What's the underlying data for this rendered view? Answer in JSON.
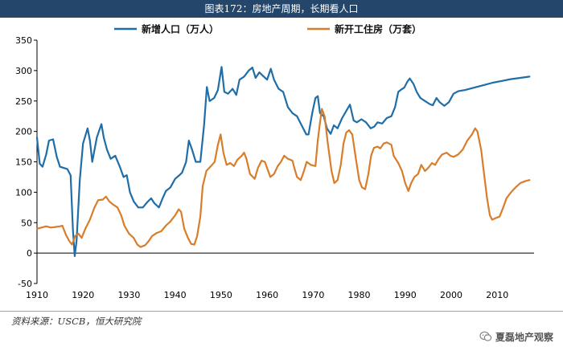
{
  "header": {
    "title": "图表172：房地产周期，长期看人口"
  },
  "source": {
    "text": "资料来源：USCB，恒大研究院"
  },
  "watermark": {
    "text": "夏磊地产观察",
    "icon": "wechat-icon"
  },
  "chart_data": {
    "type": "line",
    "title": "",
    "xlabel": "",
    "ylabel": "",
    "xlim": [
      1910,
      2018
    ],
    "ylim": [
      -50,
      350
    ],
    "x_ticks": [
      1910,
      1920,
      1930,
      1940,
      1950,
      1960,
      1970,
      1980,
      1990,
      2000,
      2010
    ],
    "y_ticks": [
      -50,
      0,
      50,
      100,
      150,
      200,
      250,
      300,
      350
    ],
    "legend_position": "top-center",
    "grid": false,
    "series": [
      {
        "name": "新增人口（万人）",
        "color": "#1f6ea8",
        "points": [
          [
            1910,
            190
          ],
          [
            1910.6,
            147
          ],
          [
            1911.2,
            142
          ],
          [
            1912.0,
            162
          ],
          [
            1912.6,
            185
          ],
          [
            1913.5,
            187
          ],
          [
            1914.3,
            158
          ],
          [
            1915.0,
            142
          ],
          [
            1915.8,
            140
          ],
          [
            1916.6,
            138
          ],
          [
            1917.3,
            128
          ],
          [
            1917.8,
            40
          ],
          [
            1918.2,
            -5
          ],
          [
            1918.6,
            20
          ],
          [
            1919.3,
            120
          ],
          [
            1920.0,
            180
          ],
          [
            1921.0,
            205
          ],
          [
            1921.5,
            185
          ],
          [
            1922.0,
            150
          ],
          [
            1923.0,
            190
          ],
          [
            1924.0,
            212
          ],
          [
            1924.5,
            190
          ],
          [
            1925.2,
            170
          ],
          [
            1926.0,
            155
          ],
          [
            1927.0,
            160
          ],
          [
            1928.0,
            142
          ],
          [
            1928.8,
            125
          ],
          [
            1929.5,
            128
          ],
          [
            1930.2,
            100
          ],
          [
            1931.0,
            85
          ],
          [
            1932.0,
            75
          ],
          [
            1933.0,
            75
          ],
          [
            1934.0,
            84
          ],
          [
            1934.8,
            90
          ],
          [
            1935.5,
            82
          ],
          [
            1936.5,
            75
          ],
          [
            1937.3,
            90
          ],
          [
            1938.0,
            102
          ],
          [
            1939.0,
            108
          ],
          [
            1940.0,
            122
          ],
          [
            1940.8,
            127
          ],
          [
            1941.5,
            132
          ],
          [
            1942.4,
            150
          ],
          [
            1943.0,
            185
          ],
          [
            1943.7,
            170
          ],
          [
            1944.5,
            150
          ],
          [
            1945.5,
            150
          ],
          [
            1946.3,
            210
          ],
          [
            1946.9,
            273
          ],
          [
            1947.5,
            250
          ],
          [
            1948.5,
            255
          ],
          [
            1949.3,
            268
          ],
          [
            1950.1,
            306
          ],
          [
            1950.7,
            265
          ],
          [
            1951.5,
            262
          ],
          [
            1952.5,
            270
          ],
          [
            1953.3,
            260
          ],
          [
            1954.0,
            285
          ],
          [
            1955.0,
            290
          ],
          [
            1956.0,
            300
          ],
          [
            1956.8,
            305
          ],
          [
            1957.5,
            288
          ],
          [
            1958.3,
            297
          ],
          [
            1959.0,
            292
          ],
          [
            1960.0,
            285
          ],
          [
            1960.8,
            303
          ],
          [
            1961.5,
            285
          ],
          [
            1962.5,
            270
          ],
          [
            1963.5,
            265
          ],
          [
            1964.5,
            240
          ],
          [
            1965.5,
            230
          ],
          [
            1966.5,
            225
          ],
          [
            1967.5,
            210
          ],
          [
            1968.5,
            195
          ],
          [
            1969.0,
            195
          ],
          [
            1969.8,
            230
          ],
          [
            1970.5,
            255
          ],
          [
            1971.0,
            258
          ],
          [
            1971.5,
            230
          ],
          [
            1972.3,
            225
          ],
          [
            1973.0,
            205
          ],
          [
            1973.8,
            196
          ],
          [
            1974.5,
            210
          ],
          [
            1975.3,
            205
          ],
          [
            1976.3,
            222
          ],
          [
            1977.3,
            235
          ],
          [
            1978.0,
            244
          ],
          [
            1978.8,
            218
          ],
          [
            1979.5,
            215
          ],
          [
            1980.5,
            220
          ],
          [
            1981.5,
            215
          ],
          [
            1982.5,
            205
          ],
          [
            1983.3,
            208
          ],
          [
            1984.0,
            215
          ],
          [
            1985.0,
            213
          ],
          [
            1986.0,
            222
          ],
          [
            1987.0,
            225
          ],
          [
            1987.8,
            240
          ],
          [
            1988.5,
            265
          ],
          [
            1989.0,
            268
          ],
          [
            1989.8,
            272
          ],
          [
            1990.5,
            282
          ],
          [
            1991.0,
            287
          ],
          [
            1991.8,
            278
          ],
          [
            1992.5,
            265
          ],
          [
            1993.3,
            255
          ],
          [
            1994.3,
            250
          ],
          [
            1995.3,
            245
          ],
          [
            1996.0,
            243
          ],
          [
            1996.8,
            255
          ],
          [
            1997.5,
            248
          ],
          [
            1998.5,
            242
          ],
          [
            1999.5,
            248
          ],
          [
            2000.5,
            262
          ],
          [
            2001.5,
            266
          ],
          [
            2003.0,
            268
          ],
          [
            2005.0,
            272
          ],
          [
            2007.0,
            276
          ],
          [
            2009.0,
            280
          ],
          [
            2011.0,
            283
          ],
          [
            2013.0,
            286
          ],
          [
            2015.0,
            288
          ],
          [
            2017.0,
            290
          ]
        ]
      },
      {
        "name": "新开工住房（万套）",
        "color": "#d97d2a",
        "points": [
          [
            1910,
            40
          ],
          [
            1911.0,
            42
          ],
          [
            1912.0,
            44
          ],
          [
            1913.0,
            42
          ],
          [
            1914.0,
            43
          ],
          [
            1915.0,
            44
          ],
          [
            1915.5,
            45
          ],
          [
            1916.3,
            30
          ],
          [
            1917.0,
            20
          ],
          [
            1917.6,
            14
          ],
          [
            1918.3,
            28
          ],
          [
            1919.0,
            32
          ],
          [
            1919.7,
            25
          ],
          [
            1920.5,
            40
          ],
          [
            1921.5,
            55
          ],
          [
            1922.5,
            75
          ],
          [
            1923.3,
            87
          ],
          [
            1924.3,
            88
          ],
          [
            1925.0,
            93
          ],
          [
            1925.7,
            85
          ],
          [
            1926.5,
            80
          ],
          [
            1927.5,
            75
          ],
          [
            1928.3,
            62
          ],
          [
            1929.0,
            45
          ],
          [
            1930.0,
            32
          ],
          [
            1931.0,
            25
          ],
          [
            1931.8,
            14
          ],
          [
            1932.5,
            10
          ],
          [
            1933.5,
            13
          ],
          [
            1934.3,
            20
          ],
          [
            1935.0,
            28
          ],
          [
            1936.0,
            33
          ],
          [
            1937.0,
            36
          ],
          [
            1938.0,
            45
          ],
          [
            1939.0,
            52
          ],
          [
            1940.0,
            62
          ],
          [
            1940.8,
            72
          ],
          [
            1941.3,
            68
          ],
          [
            1942.0,
            40
          ],
          [
            1942.8,
            25
          ],
          [
            1943.5,
            15
          ],
          [
            1944.2,
            14
          ],
          [
            1944.8,
            28
          ],
          [
            1945.5,
            60
          ],
          [
            1946.0,
            110
          ],
          [
            1946.8,
            135
          ],
          [
            1947.8,
            143
          ],
          [
            1948.6,
            150
          ],
          [
            1949.3,
            178
          ],
          [
            1949.9,
            195
          ],
          [
            1950.5,
            165
          ],
          [
            1951.2,
            145
          ],
          [
            1952.0,
            148
          ],
          [
            1952.8,
            143
          ],
          [
            1953.5,
            153
          ],
          [
            1954.5,
            160
          ],
          [
            1955.0,
            165
          ],
          [
            1955.5,
            155
          ],
          [
            1956.3,
            130
          ],
          [
            1957.3,
            122
          ],
          [
            1958.0,
            140
          ],
          [
            1958.8,
            152
          ],
          [
            1959.5,
            150
          ],
          [
            1960.0,
            140
          ],
          [
            1960.7,
            125
          ],
          [
            1961.5,
            130
          ],
          [
            1962.3,
            143
          ],
          [
            1963.0,
            150
          ],
          [
            1963.7,
            160
          ],
          [
            1964.5,
            155
          ],
          [
            1965.5,
            152
          ],
          [
            1966.0,
            138
          ],
          [
            1966.5,
            125
          ],
          [
            1967.3,
            120
          ],
          [
            1968.0,
            135
          ],
          [
            1968.6,
            150
          ],
          [
            1969.5,
            145
          ],
          [
            1970.5,
            143
          ],
          [
            1971.0,
            185
          ],
          [
            1971.5,
            215
          ],
          [
            1971.9,
            237
          ],
          [
            1972.5,
            225
          ],
          [
            1973.2,
            180
          ],
          [
            1974.0,
            135
          ],
          [
            1974.6,
            115
          ],
          [
            1975.3,
            120
          ],
          [
            1976.0,
            145
          ],
          [
            1976.6,
            180
          ],
          [
            1977.2,
            198
          ],
          [
            1977.8,
            202
          ],
          [
            1978.5,
            195
          ],
          [
            1979.3,
            155
          ],
          [
            1980.0,
            120
          ],
          [
            1980.6,
            108
          ],
          [
            1981.3,
            105
          ],
          [
            1982.0,
            130
          ],
          [
            1982.6,
            160
          ],
          [
            1983.2,
            173
          ],
          [
            1984.0,
            175
          ],
          [
            1984.6,
            172
          ],
          [
            1985.3,
            180
          ],
          [
            1986.0,
            182
          ],
          [
            1987.0,
            178
          ],
          [
            1987.5,
            160
          ],
          [
            1988.5,
            148
          ],
          [
            1989.3,
            135
          ],
          [
            1990.0,
            115
          ],
          [
            1990.7,
            102
          ],
          [
            1991.3,
            115
          ],
          [
            1992.0,
            125
          ],
          [
            1992.8,
            130
          ],
          [
            1993.5,
            145
          ],
          [
            1994.3,
            135
          ],
          [
            1995.0,
            140
          ],
          [
            1995.8,
            148
          ],
          [
            1996.5,
            145
          ],
          [
            1997.3,
            155
          ],
          [
            1998.0,
            162
          ],
          [
            1999.0,
            165
          ],
          [
            1999.8,
            160
          ],
          [
            2000.5,
            158
          ],
          [
            2001.5,
            162
          ],
          [
            2002.5,
            170
          ],
          [
            2003.5,
            185
          ],
          [
            2004.5,
            195
          ],
          [
            2005.2,
            205
          ],
          [
            2005.7,
            200
          ],
          [
            2006.5,
            170
          ],
          [
            2007.3,
            120
          ],
          [
            2007.8,
            90
          ],
          [
            2008.4,
            62
          ],
          [
            2008.9,
            55
          ],
          [
            2009.8,
            58
          ],
          [
            2010.5,
            60
          ],
          [
            2011.3,
            75
          ],
          [
            2012.0,
            90
          ],
          [
            2013.0,
            100
          ],
          [
            2014.0,
            108
          ],
          [
            2015.0,
            115
          ],
          [
            2016.0,
            118
          ],
          [
            2017.0,
            120
          ]
        ]
      }
    ]
  }
}
